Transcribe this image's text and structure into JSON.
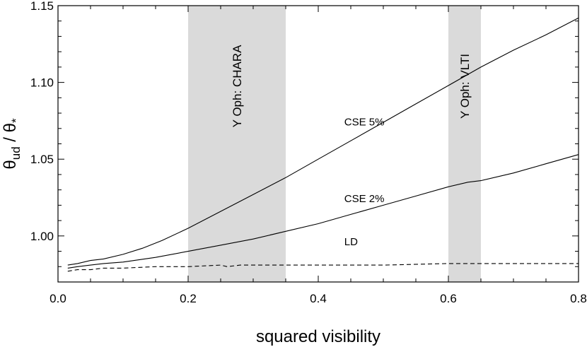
{
  "chart_data": {
    "type": "line",
    "xlabel": "squared visibility",
    "ylabel_main": "θ",
    "ylabel_sub1": "ud",
    "ylabel_mid": " / θ",
    "ylabel_sub2": "*",
    "xlim": [
      0.0,
      0.8
    ],
    "ylim": [
      0.97,
      1.15
    ],
    "xticks": [
      0.0,
      0.2,
      0.4,
      0.6,
      0.8
    ],
    "xtick_labels": [
      "0.0",
      "0.2",
      "0.4",
      "0.6",
      "0.8"
    ],
    "yticks": [
      1.0,
      1.05,
      1.1,
      1.15
    ],
    "ytick_labels": [
      "1.00",
      "1.05",
      "1.10",
      "1.15"
    ],
    "grid": false,
    "bands": [
      {
        "label": "Y Oph: CHARA",
        "x0": 0.2,
        "x1": 0.35,
        "color": "#dadada"
      },
      {
        "label": "Y Oph: VLTI",
        "x0": 0.6,
        "x1": 0.65,
        "color": "#dadada"
      }
    ],
    "series": [
      {
        "name": "CSE 5%",
        "style": "solid",
        "label_at": [
          0.44,
          1.072
        ],
        "x": [
          0.015,
          0.03,
          0.05,
          0.07,
          0.1,
          0.13,
          0.16,
          0.2,
          0.25,
          0.3,
          0.35,
          0.4,
          0.45,
          0.5,
          0.55,
          0.6,
          0.65,
          0.7,
          0.75,
          0.8
        ],
        "y": [
          0.981,
          0.982,
          0.984,
          0.985,
          0.988,
          0.992,
          0.997,
          1.005,
          1.016,
          1.027,
          1.038,
          1.05,
          1.062,
          1.074,
          1.086,
          1.098,
          1.11,
          1.121,
          1.131,
          1.142
        ]
      },
      {
        "name": "CSE 2%",
        "style": "solid",
        "label_at": [
          0.44,
          1.022
        ],
        "x": [
          0.015,
          0.03,
          0.05,
          0.07,
          0.1,
          0.15,
          0.2,
          0.25,
          0.3,
          0.35,
          0.4,
          0.45,
          0.5,
          0.55,
          0.6,
          0.63,
          0.65,
          0.7,
          0.75,
          0.8
        ],
        "y": [
          0.979,
          0.98,
          0.981,
          0.982,
          0.983,
          0.986,
          0.99,
          0.994,
          0.998,
          1.003,
          1.008,
          1.014,
          1.02,
          1.026,
          1.032,
          1.035,
          1.036,
          1.041,
          1.047,
          1.053
        ]
      },
      {
        "name": "LD",
        "style": "dashed",
        "label_at": [
          0.44,
          0.994
        ],
        "x": [
          0.015,
          0.03,
          0.05,
          0.07,
          0.1,
          0.15,
          0.2,
          0.25,
          0.26,
          0.28,
          0.3,
          0.35,
          0.4,
          0.5,
          0.6,
          0.7,
          0.8
        ],
        "y": [
          0.977,
          0.978,
          0.978,
          0.979,
          0.979,
          0.98,
          0.98,
          0.981,
          0.98,
          0.981,
          0.981,
          0.981,
          0.981,
          0.981,
          0.982,
          0.982,
          0.982
        ]
      }
    ]
  }
}
